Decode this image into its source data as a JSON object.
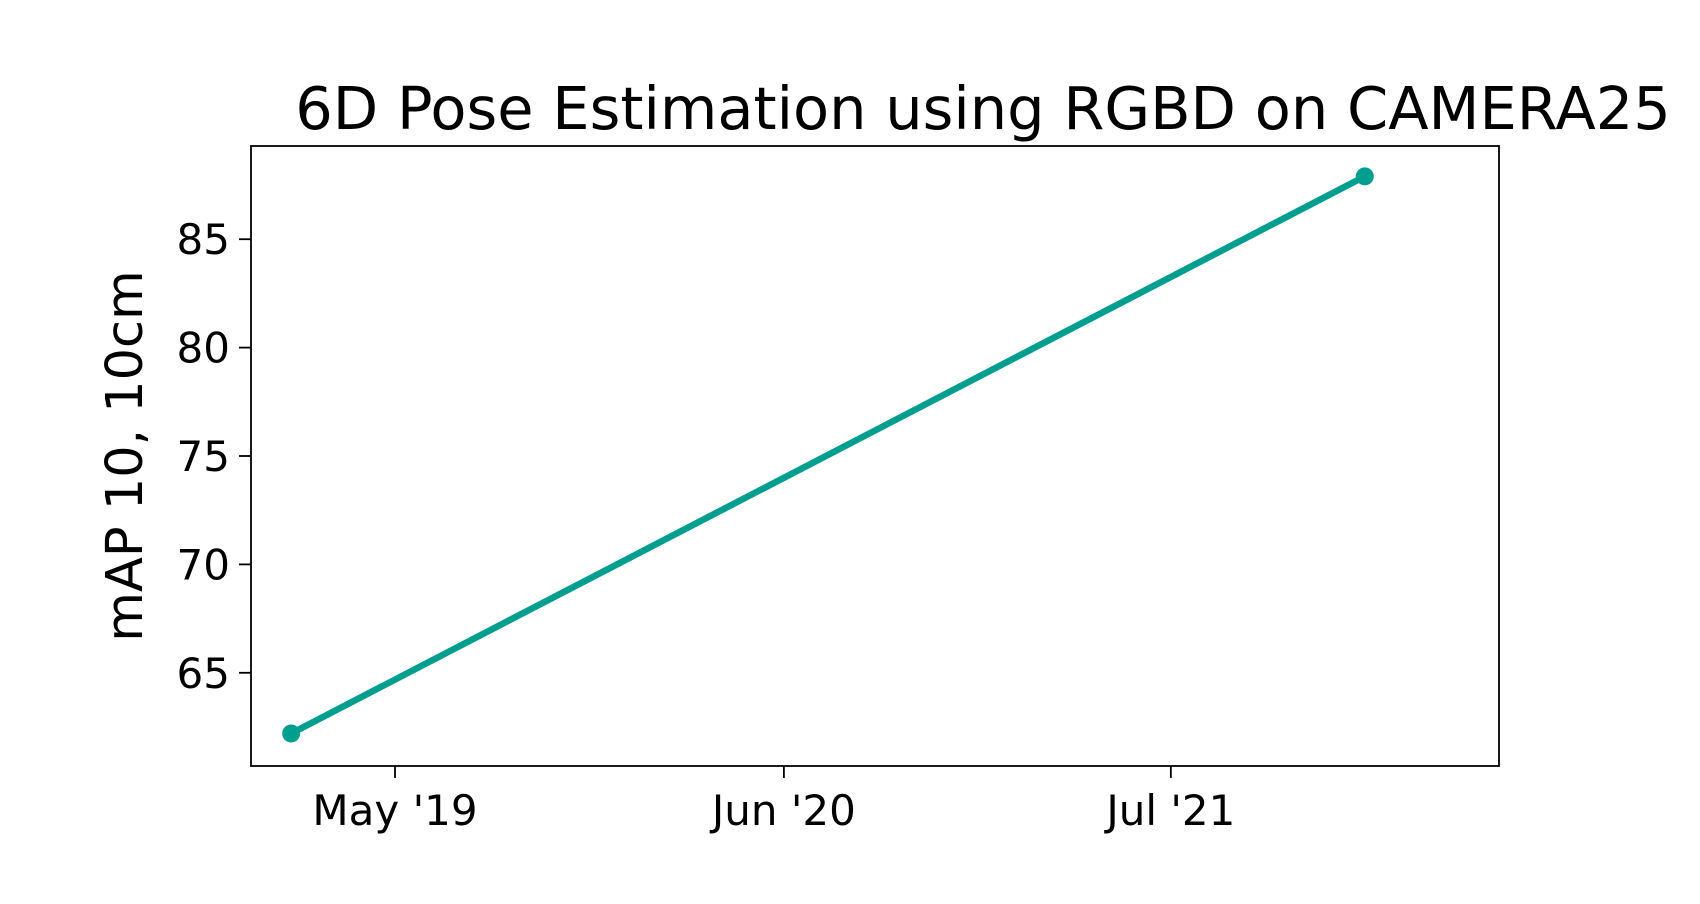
{
  "chart_data": {
    "type": "line",
    "title": "6D Pose Estimation using RGBD on CAMERA25",
    "xlabel": "",
    "ylabel": "mAP 10, 10cm",
    "x_ticks": [
      "2019-05-01",
      "2020-06-01",
      "2021-07-01"
    ],
    "x_tick_labels": [
      "May '19",
      "Jun '20",
      "Jul '21"
    ],
    "xlim": [
      "2018-12-05",
      "2022-06-01"
    ],
    "y_ticks": [
      65,
      70,
      75,
      80,
      85
    ],
    "ylim": [
      60.7,
      89.3
    ],
    "grid": false,
    "legend": "none",
    "series": [
      {
        "color": "#009e8e",
        "points": [
          {
            "x": "2019-01-15",
            "y": 62.2
          },
          {
            "x": "2022-01-15",
            "y": 87.9
          }
        ]
      }
    ]
  }
}
